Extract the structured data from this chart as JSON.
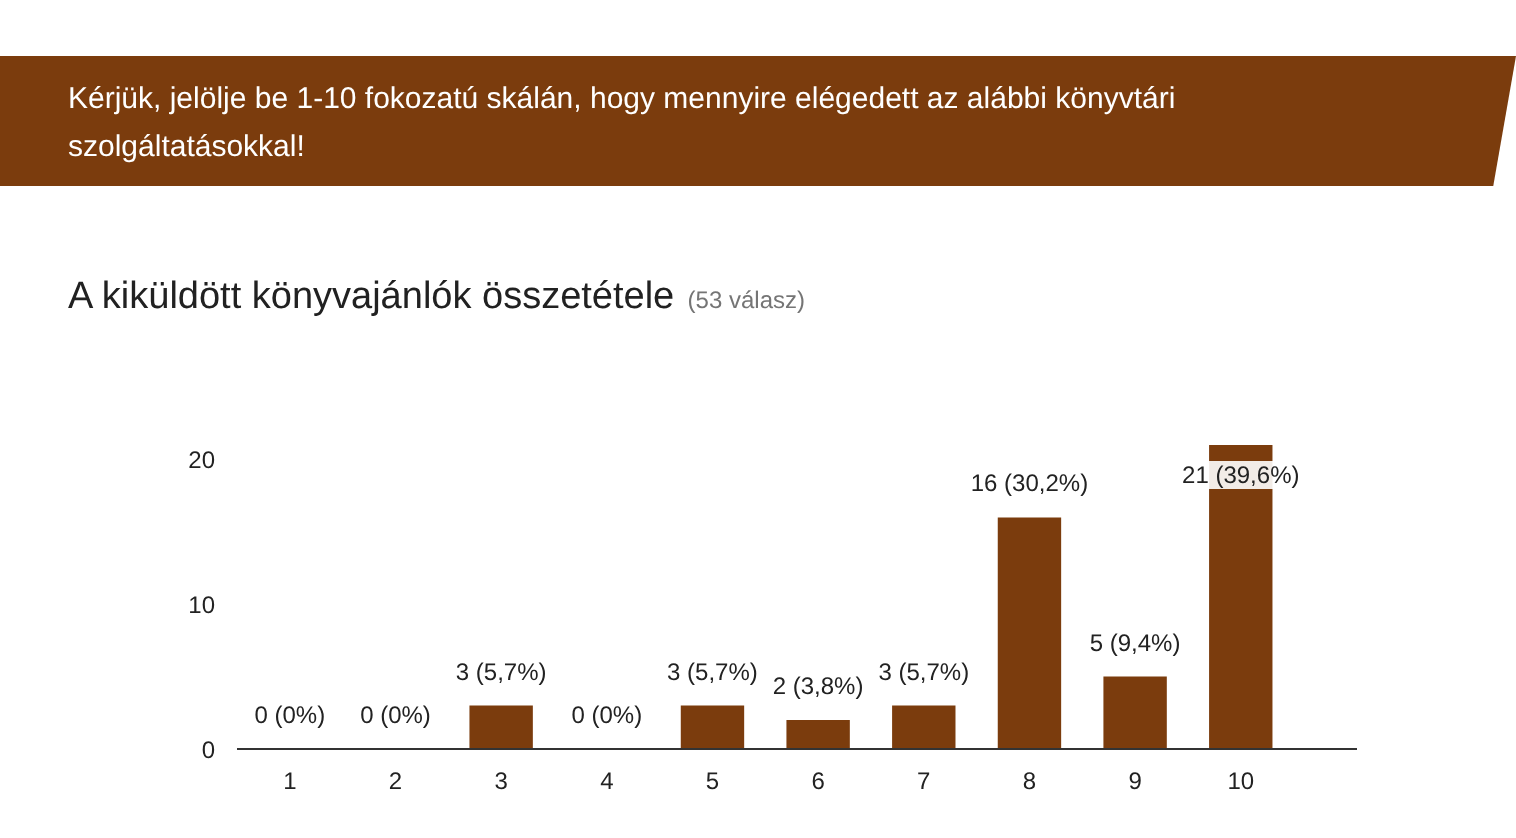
{
  "chart_data": {
    "type": "bar",
    "title": "Kérjük, jelölje be 1-10 fokozatú skálán, hogy mennyire elégedett az alábbi könyvtári szolgáltatásokkal!",
    "subtitle": "A kiküldött könyvajánlók összetétele",
    "annotations": [
      "(53 válasz)"
    ],
    "categories": [
      "1",
      "2",
      "3",
      "4",
      "5",
      "6",
      "7",
      "8",
      "9",
      "10"
    ],
    "values": [
      0,
      0,
      3,
      0,
      3,
      2,
      3,
      16,
      5,
      21
    ],
    "value_labels": [
      "0 (0%)",
      "0 (0%)",
      "3 (5,7%)",
      "0 (0%)",
      "3 (5,7%)",
      "2 (3,8%)",
      "3 (5,7%)",
      "16 (30,2%)",
      "5 (9,4%)",
      "21 (39,6%)"
    ],
    "color": "#7b3c0d",
    "ylim": [
      0,
      21
    ],
    "yticks": [
      0,
      10,
      20
    ],
    "grid": false
  }
}
